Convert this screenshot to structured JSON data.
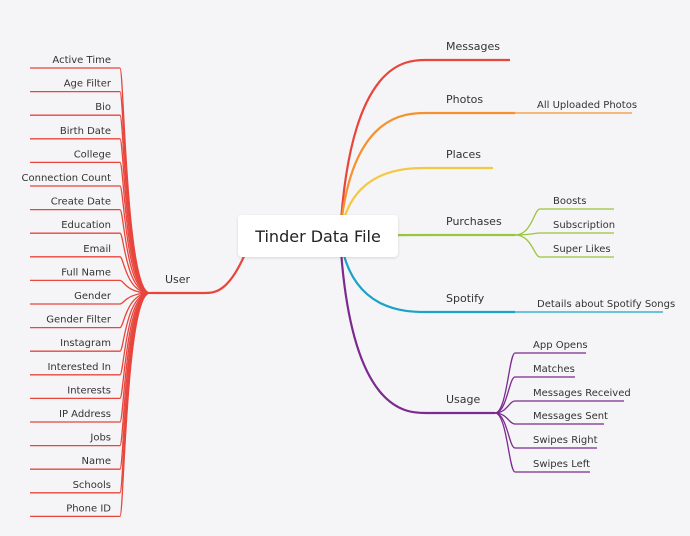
{
  "root": {
    "label": "Tinder Data File"
  },
  "branches": [
    {
      "id": "user",
      "label": "User",
      "color": "#e8453c",
      "children": [
        "Active Time",
        "Age Filter",
        "Bio",
        "Birth Date",
        "College",
        "Connection Count",
        "Create Date",
        "Education",
        "Email",
        "Full Name",
        "Gender",
        "Gender Filter",
        "Instagram",
        "Interested In",
        "Interests",
        "IP Address",
        "Jobs",
        "Name",
        "Schools",
        "Phone ID"
      ]
    },
    {
      "id": "messages",
      "label": "Messages",
      "color": "#e8453c",
      "children": []
    },
    {
      "id": "photos",
      "label": "Photos",
      "color": "#f5922f",
      "children": [
        "All Uploaded Photos"
      ]
    },
    {
      "id": "places",
      "label": "Places",
      "color": "#f5c842",
      "children": []
    },
    {
      "id": "purchases",
      "label": "Purchases",
      "color": "#9bc53d",
      "children": [
        "Boosts",
        "Subscription",
        "Super Likes"
      ]
    },
    {
      "id": "spotify",
      "label": "Spotify",
      "color": "#1aa3c8",
      "children": [
        "Details about Spotify Songs"
      ]
    },
    {
      "id": "usage",
      "label": "Usage",
      "color": "#7b2a8f",
      "children": [
        "App Opens",
        "Matches",
        "Messages Received",
        "Messages Sent",
        "Swipes Right",
        "Swipes Left"
      ]
    }
  ]
}
